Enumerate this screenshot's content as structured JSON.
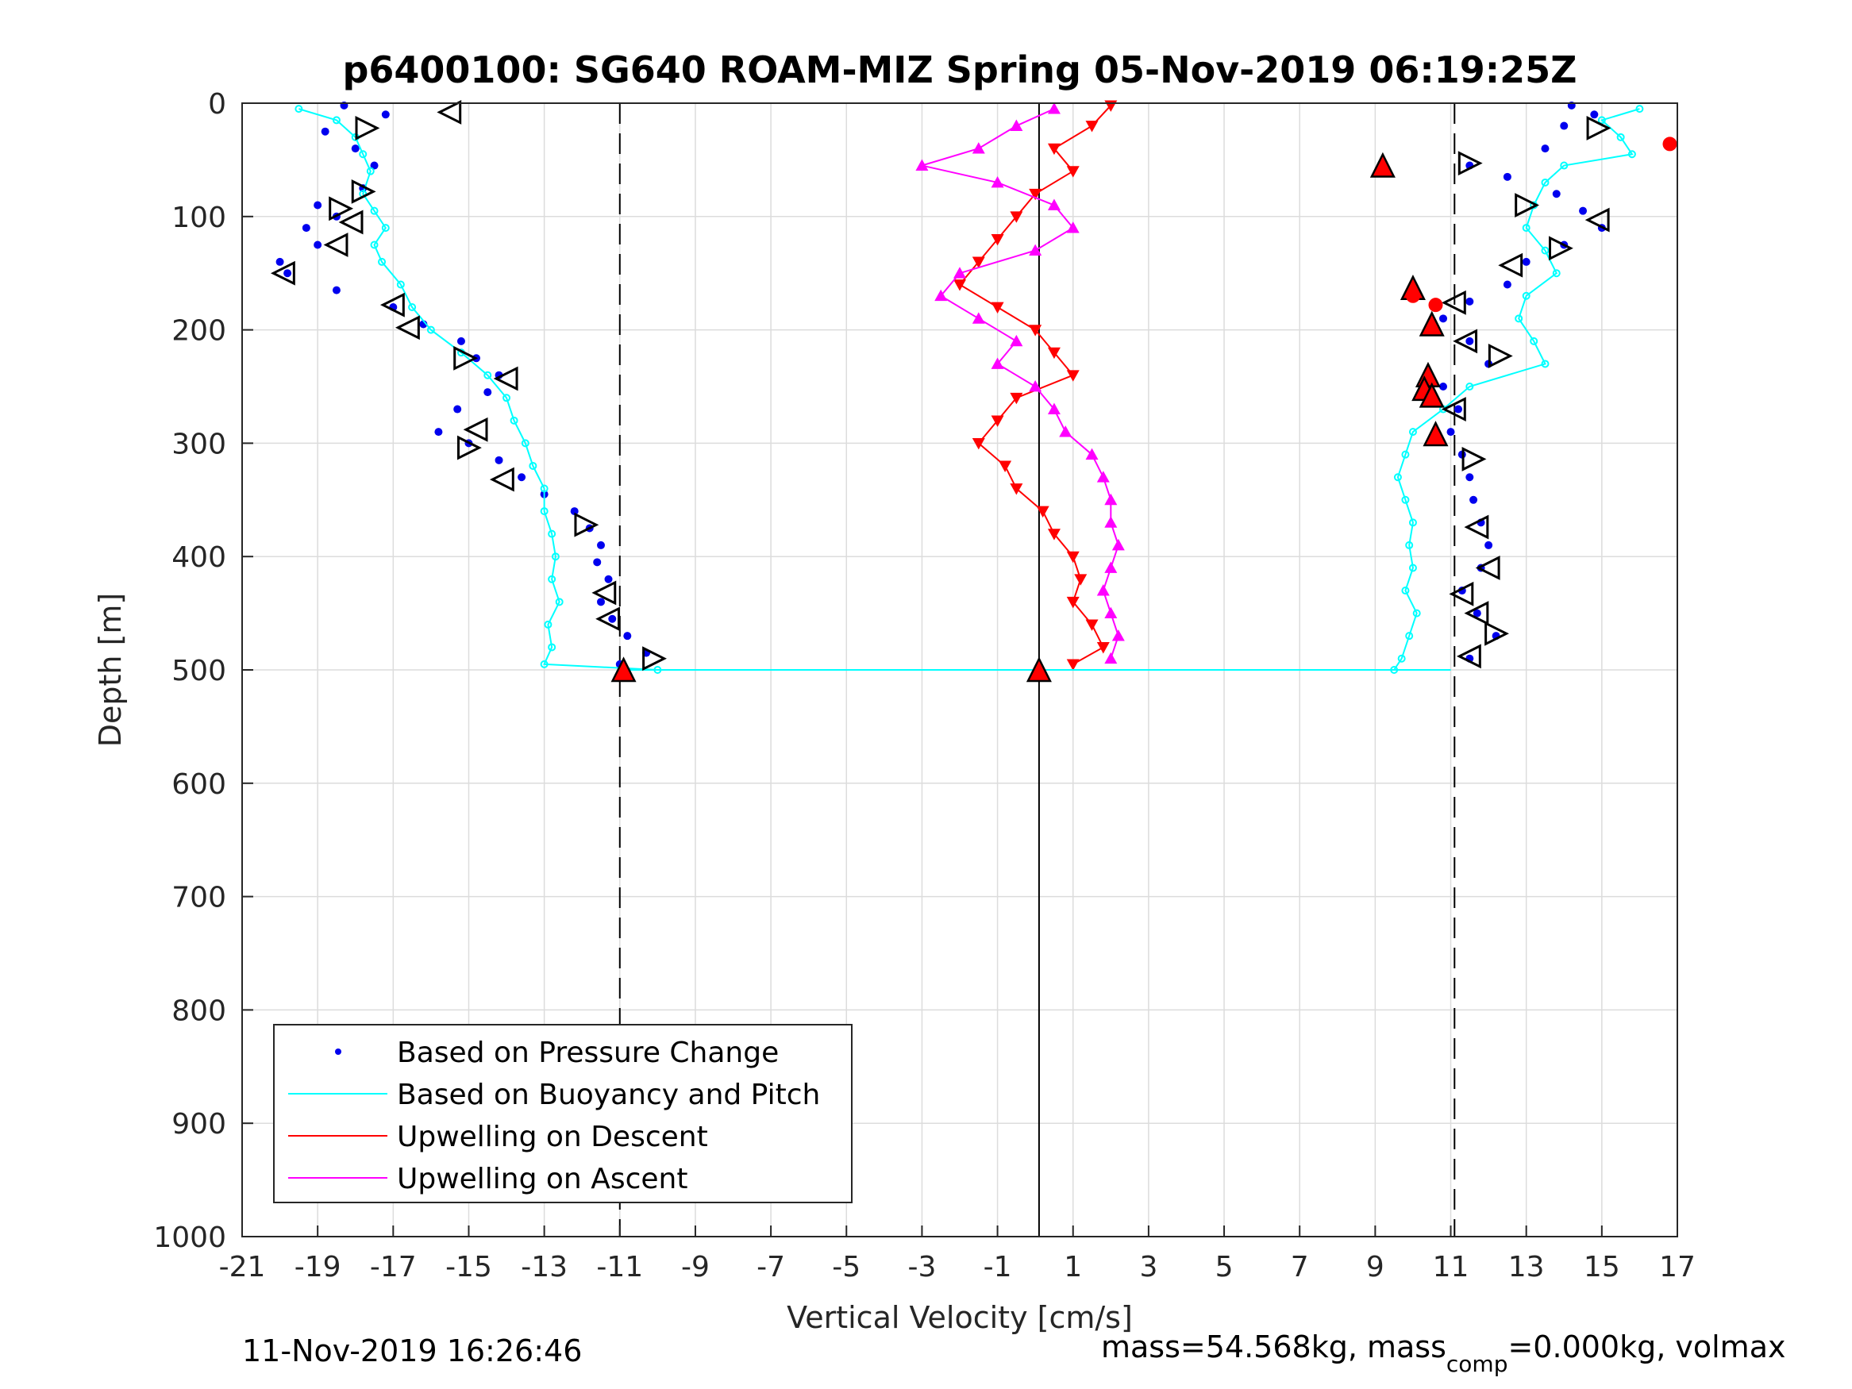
{
  "chart_data": {
    "type": "scatter",
    "title": "p6400100: SG640 ROAM-MIZ Spring 05-Nov-2019 06:19:25Z",
    "xlabel": "Vertical Velocity [cm/s]",
    "ylabel": "Depth [m]",
    "xlim": [
      -21,
      17
    ],
    "ylim": [
      0,
      1000
    ],
    "y_reversed": true,
    "grid": true,
    "xticks": [
      "-21",
      "-19",
      "-17",
      "-15",
      "-13",
      "-11",
      "-9",
      "-7",
      "-5",
      "-3",
      "-1",
      "1",
      "3",
      "5",
      "7",
      "9",
      "11",
      "13",
      "15",
      "17"
    ],
    "yticks": [
      "0",
      "100",
      "200",
      "300",
      "400",
      "500",
      "600",
      "700",
      "800",
      "900",
      "1000"
    ],
    "legend_position": "bottom-left",
    "legend": [
      "Based on Pressure Change",
      "Based on Buoyancy and Pitch",
      "Upwelling on Descent",
      "Upwelling on Ascent"
    ],
    "colors": {
      "pressure": "#0000ee",
      "buoyancy": "#00ffff",
      "descent": "#ff0000",
      "ascent": "#ff00ff",
      "markers": "#000000"
    },
    "reference_lines": [
      {
        "x": -11,
        "style": "dashed"
      },
      {
        "x": 0.1,
        "style": "solid"
      },
      {
        "x": 11.1,
        "style": "dashed"
      }
    ],
    "series": [
      {
        "name": "Based on Pressure Change",
        "segments": [
          {
            "depth": [
              2,
              10,
              25,
              40,
              55,
              75,
              90,
              100,
              110,
              125,
              140,
              150,
              165,
              180,
              195,
              210,
              225,
              240,
              255,
              270,
              290,
              300,
              315,
              330,
              345,
              360,
              375,
              390,
              405,
              420,
              440,
              455,
              470,
              485,
              495
            ],
            "x": [
              -18.3,
              -17.2,
              -18.8,
              -18.0,
              -17.5,
              -17.8,
              -19.0,
              -18.5,
              -19.3,
              -19.0,
              -20.0,
              -19.8,
              -18.5,
              -17.0,
              -16.2,
              -15.2,
              -14.8,
              -14.2,
              -14.5,
              -15.3,
              -15.8,
              -15.0,
              -14.2,
              -13.6,
              -13.0,
              -12.2,
              -11.8,
              -11.5,
              -11.6,
              -11.3,
              -11.5,
              -11.2,
              -10.8,
              -10.3,
              -11.0
            ]
          },
          {
            "depth": [
              2,
              10,
              20,
              40,
              55,
              65,
              80,
              95,
              110,
              125,
              140,
              160,
              175,
              190,
              210,
              230,
              250,
              270,
              290,
              310,
              330,
              350,
              370,
              390,
              410,
              430,
              450,
              470,
              490
            ],
            "x": [
              14.2,
              14.8,
              14.0,
              13.5,
              11.5,
              12.5,
              13.8,
              14.5,
              15.0,
              14.0,
              13.0,
              12.5,
              11.5,
              10.8,
              11.5,
              12.0,
              10.8,
              11.2,
              11.0,
              11.3,
              11.5,
              11.6,
              11.8,
              12.0,
              11.8,
              11.3,
              11.7,
              12.2,
              11.5
            ]
          }
        ]
      },
      {
        "name": "Based on Buoyancy and Pitch",
        "segments": [
          {
            "depth": [
              5,
              15,
              30,
              45,
              60,
              80,
              95,
              110,
              125,
              140,
              160,
              180,
              200,
              220,
              240,
              260,
              280,
              300,
              320,
              340,
              360,
              380,
              400,
              420,
              440,
              460,
              480,
              495,
              500
            ],
            "x": [
              -19.5,
              -18.5,
              -18.0,
              -17.8,
              -17.6,
              -17.8,
              -17.5,
              -17.2,
              -17.5,
              -17.3,
              -16.8,
              -16.5,
              -16.0,
              -15.2,
              -14.5,
              -14.0,
              -13.8,
              -13.5,
              -13.3,
              -13.0,
              -13.0,
              -12.8,
              -12.7,
              -12.8,
              -12.6,
              -12.9,
              -12.8,
              -13.0,
              -10.0
            ]
          },
          {
            "depth": [
              5,
              15,
              30,
              45,
              55,
              70,
              90,
              110,
              130,
              150,
              170,
              190,
              210,
              230,
              250,
              270,
              290,
              310,
              330,
              350,
              370,
              390,
              410,
              430,
              450,
              470,
              490,
              500
            ],
            "x": [
              16.0,
              15.0,
              15.5,
              15.8,
              14.0,
              13.5,
              13.2,
              13.0,
              13.5,
              13.8,
              13.0,
              12.8,
              13.2,
              13.5,
              11.5,
              10.8,
              10.0,
              9.8,
              9.6,
              9.8,
              10.0,
              9.9,
              10.0,
              9.8,
              10.1,
              9.9,
              9.7,
              9.5
            ]
          }
        ]
      },
      {
        "name": "Upwelling on Descent",
        "depth": [
          2,
          20,
          40,
          60,
          80,
          100,
          120,
          140,
          160,
          180,
          200,
          220,
          240,
          260,
          280,
          300,
          320,
          340,
          360,
          380,
          400,
          420,
          440,
          460,
          480,
          495
        ],
        "x": [
          2.0,
          1.5,
          0.5,
          1.0,
          0.0,
          -0.5,
          -1.0,
          -1.5,
          -2.0,
          -1.0,
          0.0,
          0.5,
          1.0,
          -0.5,
          -1.0,
          -1.5,
          -0.8,
          -0.5,
          0.2,
          0.5,
          1.0,
          1.2,
          1.0,
          1.5,
          1.8,
          1.0
        ]
      },
      {
        "name": "Upwelling on Ascent",
        "depth": [
          5,
          20,
          40,
          55,
          70,
          90,
          110,
          130,
          150,
          170,
          190,
          210,
          230,
          250,
          270,
          290,
          310,
          330,
          350,
          370,
          390,
          410,
          430,
          450,
          470,
          490
        ],
        "x": [
          0.5,
          -0.5,
          -1.5,
          -3.0,
          -1.0,
          0.5,
          1.0,
          0.0,
          -2.0,
          -2.5,
          -1.5,
          -0.5,
          -1.0,
          0.0,
          0.5,
          0.8,
          1.5,
          1.8,
          2.0,
          2.0,
          2.2,
          2.0,
          1.8,
          2.0,
          2.2,
          2.0
        ]
      }
    ],
    "bottom_connector": {
      "depth": 500,
      "x": [
        -11,
        11
      ]
    },
    "triangle_markers": [
      {
        "x": -15.5,
        "y": 8,
        "dir": "left"
      },
      {
        "x": -17.7,
        "y": 22,
        "dir": "right"
      },
      {
        "x": -17.8,
        "y": 78,
        "dir": "right"
      },
      {
        "x": -18.4,
        "y": 93,
        "dir": "right"
      },
      {
        "x": -18.1,
        "y": 105,
        "dir": "left"
      },
      {
        "x": -18.5,
        "y": 125,
        "dir": "left"
      },
      {
        "x": -19.9,
        "y": 150,
        "dir": "left"
      },
      {
        "x": -17.0,
        "y": 178,
        "dir": "left"
      },
      {
        "x": -16.6,
        "y": 198,
        "dir": "left"
      },
      {
        "x": -15.1,
        "y": 225,
        "dir": "right"
      },
      {
        "x": -14.0,
        "y": 243,
        "dir": "left"
      },
      {
        "x": -14.8,
        "y": 288,
        "dir": "left"
      },
      {
        "x": -15.0,
        "y": 304,
        "dir": "right"
      },
      {
        "x": -14.1,
        "y": 332,
        "dir": "left"
      },
      {
        "x": -11.9,
        "y": 372,
        "dir": "right"
      },
      {
        "x": -11.4,
        "y": 432,
        "dir": "left"
      },
      {
        "x": -11.3,
        "y": 455,
        "dir": "left"
      },
      {
        "x": -10.1,
        "y": 490,
        "dir": "right"
      },
      {
        "x": 14.9,
        "y": 22,
        "dir": "right"
      },
      {
        "x": 11.5,
        "y": 53,
        "dir": "right"
      },
      {
        "x": 13.0,
        "y": 90,
        "dir": "right"
      },
      {
        "x": 14.9,
        "y": 103,
        "dir": "left"
      },
      {
        "x": 13.9,
        "y": 128,
        "dir": "right"
      },
      {
        "x": 12.6,
        "y": 143,
        "dir": "left"
      },
      {
        "x": 11.1,
        "y": 176,
        "dir": "left"
      },
      {
        "x": 11.4,
        "y": 210,
        "dir": "left"
      },
      {
        "x": 12.3,
        "y": 223,
        "dir": "right"
      },
      {
        "x": 11.1,
        "y": 270,
        "dir": "left"
      },
      {
        "x": 11.6,
        "y": 314,
        "dir": "right"
      },
      {
        "x": 11.7,
        "y": 374,
        "dir": "left"
      },
      {
        "x": 12.0,
        "y": 410,
        "dir": "left"
      },
      {
        "x": 11.3,
        "y": 433,
        "dir": "left"
      },
      {
        "x": 11.7,
        "y": 450,
        "dir": "left"
      },
      {
        "x": 12.2,
        "y": 468,
        "dir": "right"
      },
      {
        "x": 11.5,
        "y": 488,
        "dir": "left"
      }
    ],
    "red_up_markers": [
      {
        "x": -10.9,
        "y": 500
      },
      {
        "x": 0.1,
        "y": 500
      },
      {
        "x": 9.2,
        "y": 55
      },
      {
        "x": 10.0,
        "y": 163
      },
      {
        "x": 10.5,
        "y": 195
      },
      {
        "x": 10.4,
        "y": 240
      },
      {
        "x": 10.3,
        "y": 252
      },
      {
        "x": 10.5,
        "y": 258
      },
      {
        "x": 10.6,
        "y": 292
      }
    ],
    "red_dots": [
      {
        "x": 16.8,
        "y": 36
      },
      {
        "x": 10.0,
        "y": 170
      },
      {
        "x": 10.6,
        "y": 178
      }
    ]
  },
  "footer": {
    "timestamp": "11-Nov-2019 16:26:46",
    "mass_prefix": "mass=54.568kg, mass",
    "mass_sub": "comp",
    "mass_suffix": "=0.000kg, volmax"
  }
}
